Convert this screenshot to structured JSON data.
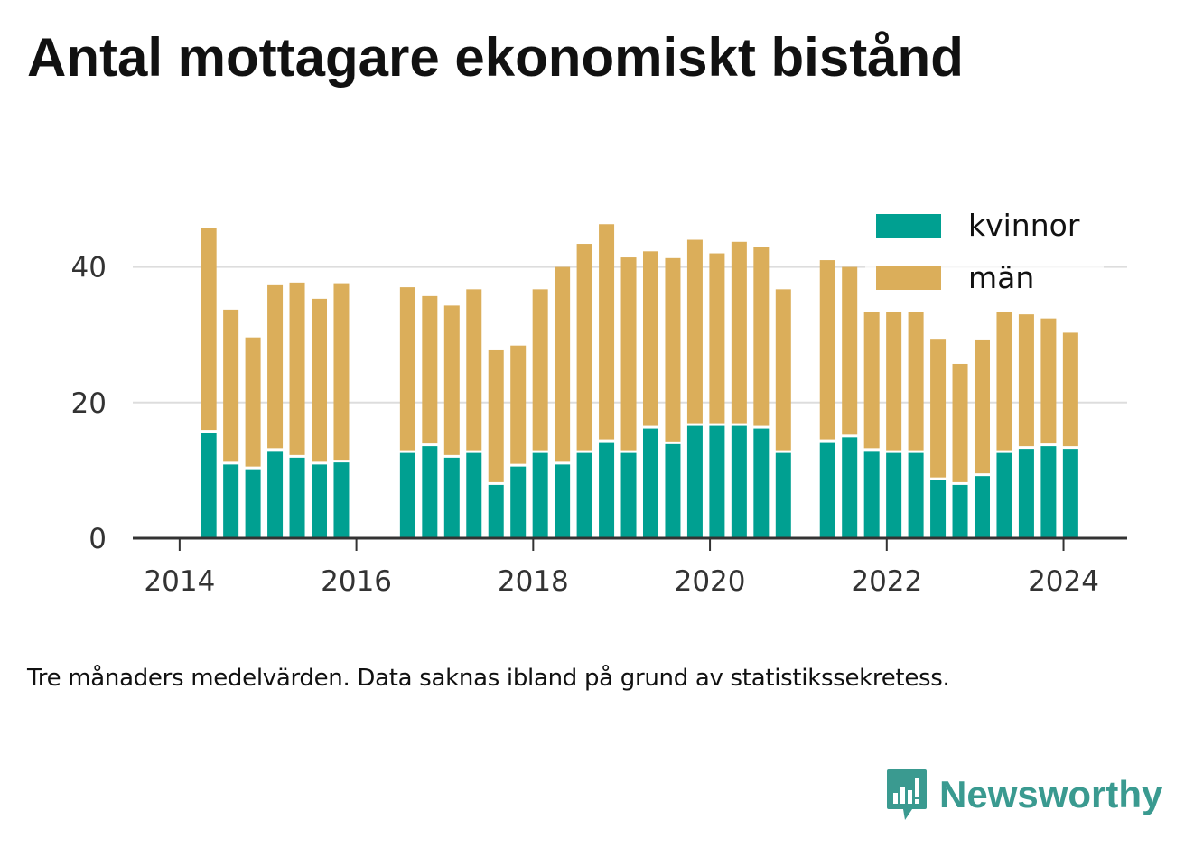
{
  "title": "Antal mottagare ekonomiskt bistånd",
  "note": "Tre månaders medelvärden. Data saknas ibland på grund av statistikssekretess.",
  "brand": {
    "name": "Newsworthy",
    "icon": "newsworthy-logo-icon",
    "color": "#3a9a90"
  },
  "colors": {
    "kvinnor": "#00a091",
    "man": "#dbae5a",
    "grid": "#dddddd",
    "axis": "#333333"
  },
  "chart_data": {
    "type": "bar",
    "stacked": true,
    "x_tick_labels": [
      "2014",
      "2016",
      "2018",
      "2020",
      "2022",
      "2024"
    ],
    "x_ticks": [
      2014,
      2016,
      2018,
      2020,
      2022,
      2024
    ],
    "y_tick_labels": [
      "0",
      "20",
      "40"
    ],
    "y_ticks": [
      0,
      20,
      40
    ],
    "xlim": [
      2013.47,
      2024.72
    ],
    "ylim": [
      0,
      47
    ],
    "grid": true,
    "legend_position": "top-right",
    "x": [
      2014.33,
      2014.58,
      2014.83,
      2015.08,
      2015.33,
      2015.58,
      2015.83,
      2016.58,
      2016.83,
      2017.08,
      2017.33,
      2017.58,
      2017.83,
      2018.08,
      2018.33,
      2018.58,
      2018.83,
      2019.08,
      2019.33,
      2019.58,
      2019.83,
      2020.08,
      2020.33,
      2020.58,
      2020.83,
      2021.33,
      2021.58,
      2021.83,
      2022.08,
      2022.33,
      2022.58,
      2022.83,
      2023.08,
      2023.33,
      2023.58,
      2023.83,
      2024.08
    ],
    "series": [
      {
        "name": "kvinnor",
        "color": "#00a091",
        "values": [
          15.7,
          11.0,
          10.3,
          13.0,
          12.0,
          11.0,
          11.3,
          12.7,
          13.7,
          12.0,
          12.7,
          8.0,
          10.7,
          12.7,
          11.0,
          12.7,
          14.3,
          12.7,
          16.3,
          14.0,
          16.7,
          16.7,
          16.7,
          16.3,
          12.7,
          14.3,
          15.0,
          13.0,
          12.7,
          12.7,
          8.7,
          8.0,
          9.3,
          12.7,
          13.3,
          13.7,
          13.3
        ]
      },
      {
        "name": "män",
        "color": "#dbae5a",
        "values": [
          30.0,
          22.7,
          19.3,
          24.3,
          25.7,
          24.3,
          26.3,
          24.3,
          22.0,
          22.3,
          24.0,
          19.7,
          17.7,
          24.0,
          29.0,
          30.7,
          32.0,
          28.7,
          26.0,
          27.3,
          27.3,
          25.3,
          27.0,
          26.7,
          24.0,
          26.7,
          25.0,
          20.3,
          20.7,
          20.7,
          20.7,
          17.7,
          20.0,
          20.7,
          19.7,
          18.7,
          17.0
        ]
      }
    ]
  }
}
